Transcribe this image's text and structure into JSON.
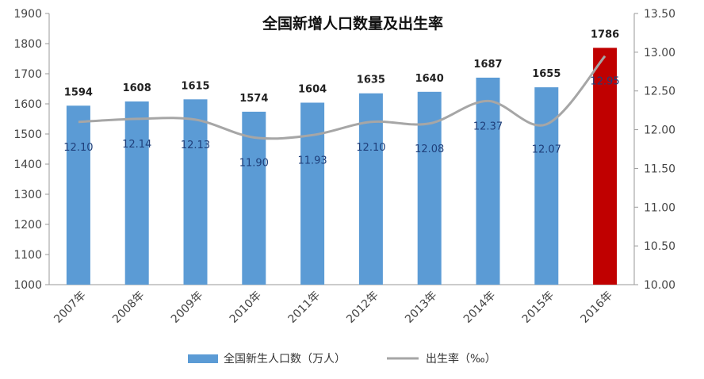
{
  "chart_data": {
    "type": "bar",
    "title": "全国新增人口数量及出生率",
    "categories": [
      "2007年",
      "2008年",
      "2009年",
      "2010年",
      "2011年",
      "2012年",
      "2013年",
      "2014年",
      "2015年",
      "2016年"
    ],
    "series": [
      {
        "name": "全国新生人口数（万人）",
        "type": "bar",
        "axis": "left",
        "values": [
          1594,
          1608,
          1615,
          1574,
          1604,
          1635,
          1640,
          1687,
          1655,
          1786
        ],
        "color": "#5b9bd5",
        "highlight_color": "#c00000",
        "highlight_index": 9
      },
      {
        "name": "出生率（‰）",
        "type": "line",
        "axis": "right",
        "values": [
          12.1,
          12.14,
          12.13,
          11.9,
          11.93,
          12.1,
          12.08,
          12.37,
          12.07,
          12.95
        ],
        "labels": [
          "12.10",
          "12.14",
          "12.13",
          "11.90",
          "11.93",
          "12.10",
          "12.08",
          "12.37",
          "12.07",
          "12.95"
        ],
        "color": "#a6a6a6"
      }
    ],
    "y_left": {
      "min": 1000,
      "max": 1900,
      "step": 100
    },
    "y_right": {
      "min": 10.0,
      "max": 13.5,
      "step": 0.5
    },
    "grid": false,
    "legend": "bottom"
  }
}
